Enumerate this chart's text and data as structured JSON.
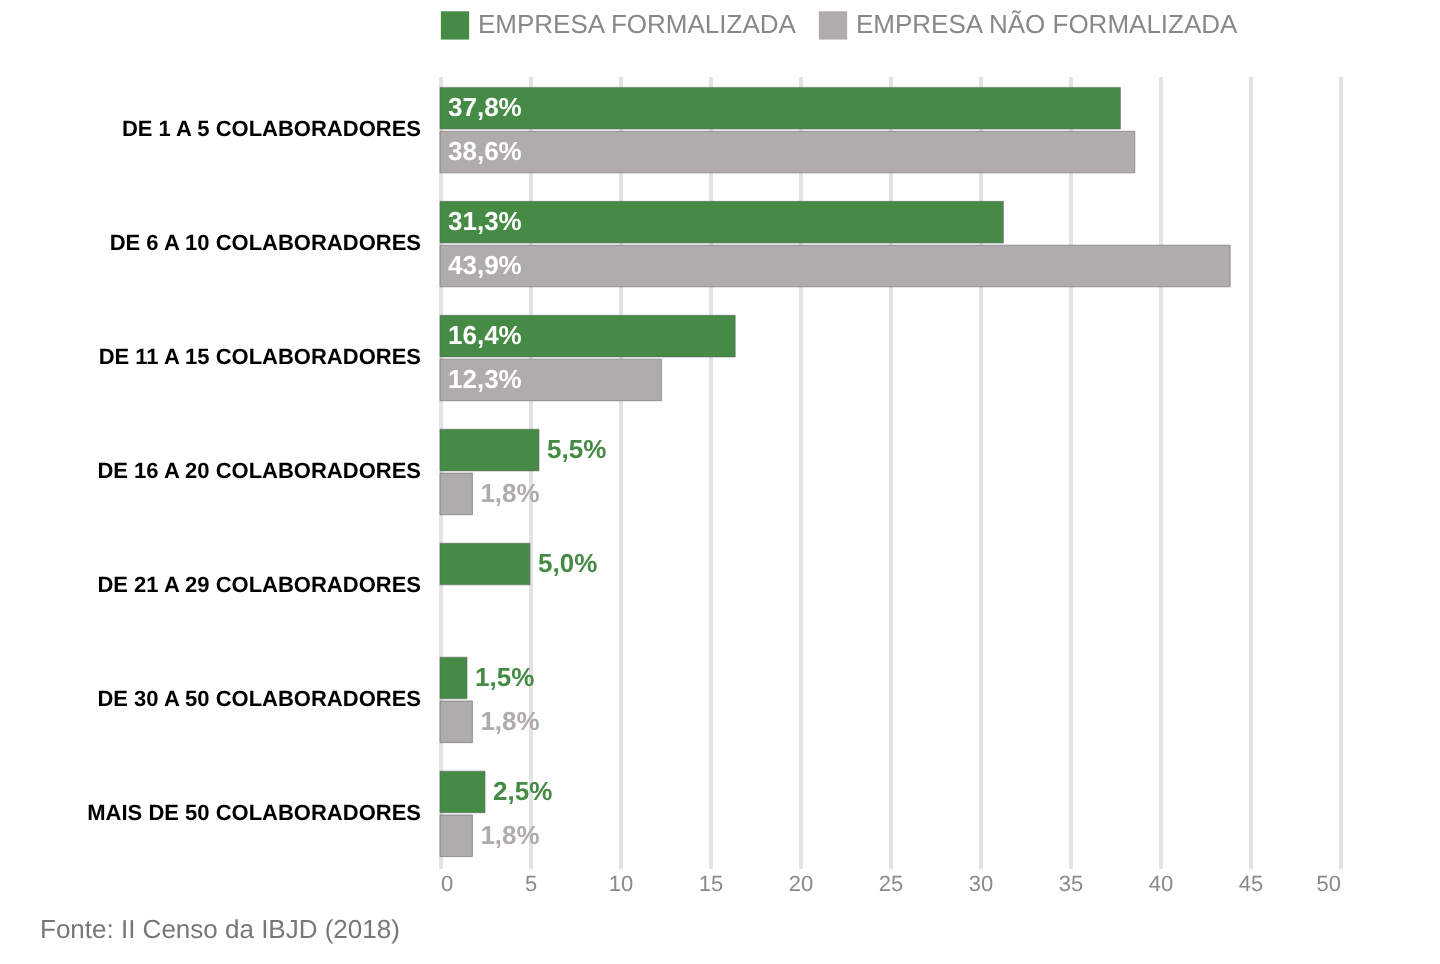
{
  "chart_data": {
    "type": "bar",
    "orientation": "horizontal",
    "categories": [
      "DE 1 A 5 COLABORADORES",
      "DE 6 A 10 COLABORADORES",
      "DE 11 A 15 COLABORADORES",
      "DE 16 A 20 COLABORADORES",
      "DE 21 A 29 COLABORADORES",
      "DE 30 A 50 COLABORADORES",
      "MAIS DE 50 COLABORADORES"
    ],
    "series": [
      {
        "name": "EMPRESA FORMALIZADA",
        "color": "#458b45",
        "values": [
          37.8,
          31.3,
          16.4,
          5.5,
          5.0,
          1.5,
          2.5
        ],
        "value_labels": [
          "37,8%",
          "31,3%",
          "16,4%",
          "5,5%",
          "5,0%",
          "1,5%",
          "2,5%"
        ]
      },
      {
        "name": "EMPRESA NÃO FORMALIZADA",
        "color": "#b0acab",
        "values": [
          38.6,
          43.9,
          12.3,
          1.8,
          null,
          1.8,
          1.8
        ],
        "value_labels": [
          "38,6%",
          "43,9%",
          "12,3%",
          "1,8%",
          null,
          "1,8%",
          "1,8%"
        ]
      }
    ],
    "xlim": [
      0,
      50
    ],
    "xticks": [
      0,
      5,
      10,
      15,
      20,
      25,
      30,
      35,
      40,
      45,
      50
    ],
    "grid": "x",
    "legend": "top",
    "annotations": [
      "Fonte: II Censo da IBJD (2018)"
    ]
  }
}
